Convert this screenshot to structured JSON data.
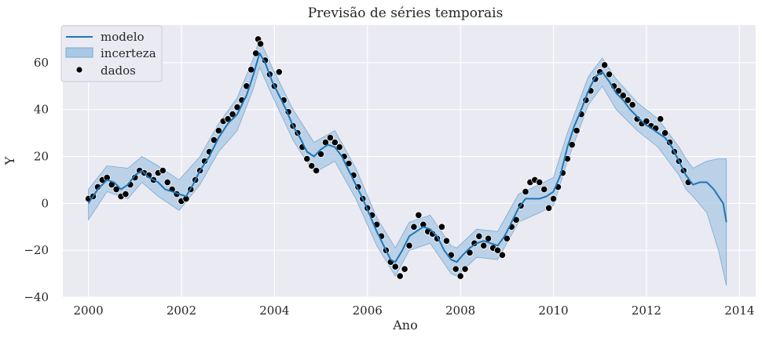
{
  "chart_data": {
    "type": "line",
    "title": "Previsão de séries temporais",
    "xlabel": "Ano",
    "ylabel": "Y",
    "xlim": [
      1999.45,
      2014.35
    ],
    "ylim": [
      -40,
      76
    ],
    "xticks": [
      2000,
      2002,
      2004,
      2006,
      2008,
      2010,
      2012,
      2014
    ],
    "yticks": [
      -40,
      -20,
      0,
      20,
      40,
      60
    ],
    "grid": true,
    "legend_position": "top-left",
    "legend": [
      "modelo",
      "incerteza",
      "dados"
    ],
    "colors": {
      "background": "#eaeaf2",
      "grid": "#ffffff",
      "model": "#1f77b4",
      "band": "#a9c8e4",
      "points": "#000000",
      "text": "#262626"
    },
    "series": [
      {
        "name": "modelo",
        "role": "forecast",
        "x": [
          2000.0,
          2000.2,
          2000.4,
          2000.55,
          2000.7,
          2000.85,
          2001.0,
          2001.15,
          2001.3,
          2001.5,
          2001.65,
          2001.8,
          2001.95,
          2002.1,
          2002.25,
          2002.4,
          2002.6,
          2002.8,
          2003.0,
          2003.2,
          2003.4,
          2003.55,
          2003.68,
          2003.8,
          2003.95,
          2004.1,
          2004.25,
          2004.4,
          2004.55,
          2004.7,
          2004.85,
          2005.0,
          2005.15,
          2005.3,
          2005.45,
          2005.6,
          2005.75,
          2005.9,
          2006.05,
          2006.2,
          2006.35,
          2006.5,
          2006.6,
          2006.75,
          2006.9,
          2007.05,
          2007.2,
          2007.35,
          2007.5,
          2007.65,
          2007.8,
          2007.92,
          2008.05,
          2008.2,
          2008.35,
          2008.5,
          2008.65,
          2008.8,
          2008.95,
          2009.1,
          2009.25,
          2009.4,
          2009.55,
          2009.7,
          2009.85,
          2010.0,
          2010.15,
          2010.3,
          2010.45,
          2010.6,
          2010.75,
          2010.9,
          2011.05,
          2011.2,
          2011.35,
          2011.5,
          2011.65,
          2011.8,
          2011.95,
          2012.1,
          2012.25,
          2012.4,
          2012.55,
          2012.7,
          2012.85,
          2013.0,
          2013.15,
          2013.3,
          2013.45,
          2013.55,
          2013.65,
          2013.72
        ],
        "y": [
          0,
          6,
          10,
          9,
          6,
          8,
          12,
          14,
          11,
          9,
          6,
          5,
          4,
          3,
          8,
          14,
          20,
          28,
          34,
          38,
          46,
          55,
          64,
          60,
          52,
          46,
          40,
          33,
          28,
          22,
          20,
          23,
          25,
          24,
          20,
          14,
          8,
          2,
          -5,
          -12,
          -18,
          -24,
          -25,
          -20,
          -14,
          -12,
          -10,
          -11,
          -14,
          -20,
          -24,
          -25,
          -22,
          -19,
          -17,
          -16,
          -17,
          -18,
          -14,
          -8,
          -2,
          2,
          2,
          2,
          3,
          5,
          12,
          24,
          33,
          40,
          48,
          54,
          56,
          52,
          47,
          44,
          40,
          37,
          34,
          32,
          30,
          28,
          24,
          18,
          12,
          8,
          9,
          9,
          6,
          3,
          0,
          -8
        ]
      },
      {
        "name": "incerteza",
        "role": "uncertainty-band",
        "x": [
          2000.0,
          2000.4,
          2000.85,
          2001.15,
          2001.5,
          2001.95,
          2002.4,
          2002.8,
          2003.2,
          2003.55,
          2003.68,
          2003.95,
          2004.4,
          2004.85,
          2005.3,
          2005.75,
          2006.2,
          2006.6,
          2006.9,
          2007.35,
          2007.8,
          2007.92,
          2008.35,
          2008.8,
          2009.25,
          2009.7,
          2010.0,
          2010.3,
          2010.75,
          2011.05,
          2011.35,
          2011.8,
          2012.25,
          2012.7,
          2012.85,
          2013.0,
          2013.3,
          2013.55,
          2013.72
        ],
        "lower": [
          -7,
          5,
          2,
          9,
          3,
          -3,
          8,
          22,
          31,
          49,
          58,
          46,
          27,
          13,
          18,
          2,
          -18,
          -31,
          -20,
          -17,
          -30,
          -31,
          -23,
          -24,
          -8,
          -4,
          -1,
          18,
          42,
          50,
          40,
          31,
          24,
          12,
          6,
          3,
          -4,
          -20,
          -35
        ],
        "upper": [
          6,
          16,
          15,
          20,
          16,
          10,
          20,
          34,
          45,
          62,
          70,
          58,
          40,
          26,
          31,
          15,
          -6,
          -19,
          -8,
          -5,
          -18,
          -19,
          -11,
          -12,
          4,
          8,
          11,
          30,
          54,
          62,
          53,
          43,
          36,
          24,
          19,
          15,
          18,
          19,
          19
        ]
      },
      {
        "name": "dados",
        "role": "observed",
        "x": [
          2000.0,
          2000.1,
          2000.2,
          2000.3,
          2000.4,
          2000.5,
          2000.6,
          2000.7,
          2000.8,
          2000.9,
          2001.0,
          2001.1,
          2001.2,
          2001.3,
          2001.4,
          2001.5,
          2001.6,
          2001.7,
          2001.8,
          2001.9,
          2002.0,
          2002.1,
          2002.2,
          2002.3,
          2002.4,
          2002.5,
          2002.6,
          2002.7,
          2002.8,
          2002.9,
          2003.0,
          2003.1,
          2003.2,
          2003.3,
          2003.4,
          2003.5,
          2003.6,
          2003.65,
          2003.7,
          2003.8,
          2003.9,
          2004.0,
          2004.1,
          2004.2,
          2004.3,
          2004.4,
          2004.5,
          2004.6,
          2004.7,
          2004.8,
          2004.9,
          2005.0,
          2005.1,
          2005.2,
          2005.3,
          2005.4,
          2005.5,
          2005.6,
          2005.7,
          2005.8,
          2005.9,
          2006.0,
          2006.1,
          2006.2,
          2006.3,
          2006.4,
          2006.5,
          2006.6,
          2006.7,
          2006.8,
          2006.9,
          2007.0,
          2007.1,
          2007.2,
          2007.3,
          2007.4,
          2007.5,
          2007.6,
          2007.7,
          2007.8,
          2007.9,
          2008.0,
          2008.1,
          2008.2,
          2008.3,
          2008.4,
          2008.5,
          2008.6,
          2008.7,
          2008.8,
          2008.9,
          2009.0,
          2009.1,
          2009.2,
          2009.3,
          2009.4,
          2009.5,
          2009.6,
          2009.7,
          2009.8,
          2009.9,
          2010.0,
          2010.1,
          2010.2,
          2010.3,
          2010.4,
          2010.5,
          2010.6,
          2010.7,
          2010.8,
          2010.9,
          2011.0,
          2011.1,
          2011.2,
          2011.3,
          2011.4,
          2011.5,
          2011.6,
          2011.7,
          2011.8,
          2011.9,
          2012.0,
          2012.1,
          2012.2,
          2012.3,
          2012.4,
          2012.5,
          2012.6,
          2012.7,
          2012.8,
          2012.9
        ],
        "y": [
          2,
          3,
          7,
          10,
          11,
          8,
          6,
          3,
          4,
          8,
          11,
          14,
          13,
          12,
          10,
          13,
          14,
          9,
          6,
          4,
          1,
          2,
          6,
          10,
          14,
          18,
          22,
          27,
          31,
          35,
          36,
          38,
          41,
          44,
          50,
          57,
          64,
          70,
          68,
          61,
          55,
          50,
          56,
          44,
          39,
          33,
          30,
          24,
          19,
          16,
          14,
          21,
          26,
          28,
          26,
          24,
          20,
          17,
          12,
          7,
          2,
          -2,
          -5,
          -9,
          -14,
          -20,
          -25,
          -27,
          -31,
          -28,
          -18,
          -10,
          -5,
          -9,
          -12,
          -13,
          -15,
          -10,
          -16,
          -22,
          -28,
          -31,
          -28,
          -21,
          -17,
          -14,
          -18,
          -15,
          -19,
          -20,
          -22,
          -15,
          -10,
          -7,
          -1,
          5,
          9,
          10,
          9,
          6,
          -2,
          2,
          7,
          13,
          19,
          25,
          31,
          38,
          44,
          48,
          53,
          56,
          59,
          55,
          50,
          48,
          46,
          44,
          42,
          36,
          34,
          35,
          33,
          32,
          36,
          30,
          26,
          22,
          18,
          14,
          9
        ]
      }
    ]
  }
}
